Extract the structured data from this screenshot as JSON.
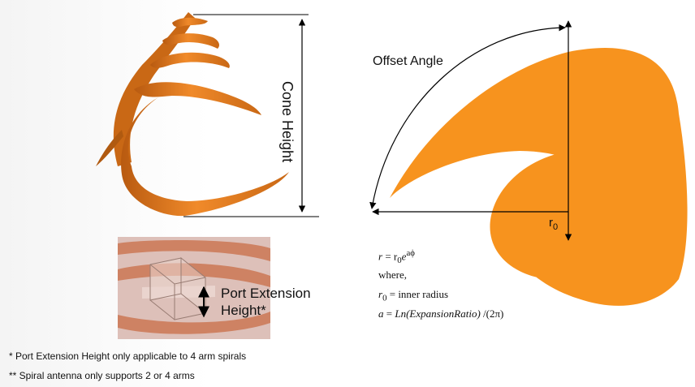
{
  "labels": {
    "cone_height": "Cone Height",
    "offset_angle": "Offset Angle",
    "r0_letter": "r",
    "r0_sub": "0",
    "port_line1": "Port Extension",
    "port_line2": "Height*"
  },
  "notes": {
    "note1": "* Port Extension Height only applicable to 4 arm spirals",
    "note2": "** Spiral antenna only supports 2 or 4 arms"
  },
  "equations": {
    "eq1_lhs": "r",
    "eq1_mid": " = r",
    "eq1_sub": "0",
    "eq1_base": "e",
    "eq1_exp": "aϕ",
    "where": "where,",
    "eq3_lhs": "r",
    "eq3_sub": "0",
    "eq3_rhs": " = inner radius",
    "eq4_lhs": "a",
    "eq4_eq": " = ",
    "eq4_fn": "Ln(ExpansionRatio)",
    "eq4_tail": " /(2π)"
  },
  "colors": {
    "spiral_orange": "#f7931e",
    "cone_orange": "#e67e22",
    "inset_pink": "#d9b8b0",
    "inset_copper": "#c8714e"
  }
}
